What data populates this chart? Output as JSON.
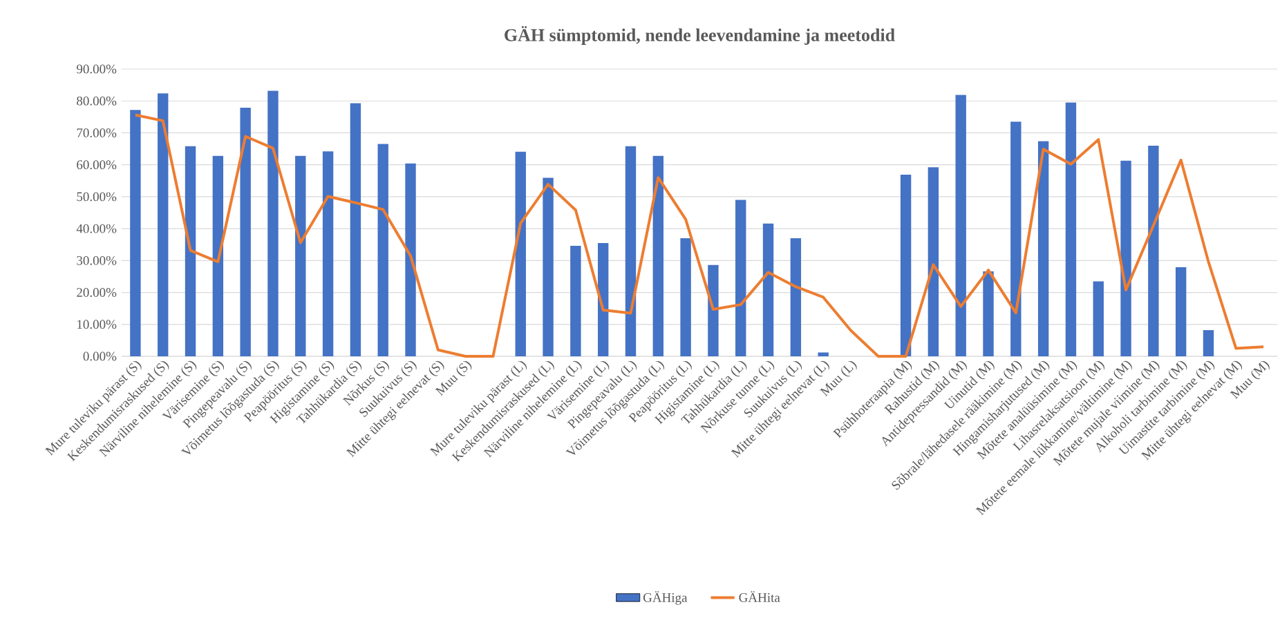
{
  "chart_data": {
    "type": "bar",
    "title": "GÄH sümptomid, nende leevendamine ja meetodid",
    "categories": [
      "Mure tuleviku pärast (S)",
      "Keskendumisraskused (S)",
      "Närviline nihelemine (S)",
      "Värisemine (S)",
      "Pingepeavalu (S)",
      "Võimetus lõõgastuda (S)",
      "Peapööritus (S)",
      "Higistamine (S)",
      "Tahhükardia (S)",
      "Nõrkus (S)",
      "Suukuivus (S)",
      "Mitte ühtegi eelnevat (S)",
      "Muu (S)",
      null,
      "Mure tuleviku pärast (L)",
      "Keskendumisraskused (L)",
      "Närviline nihelemine (L)",
      "Värisemine (L)",
      "Pingepeavalu (L)",
      "Võimetus lõõgastuda (L)",
      "Peapööritus (L)",
      "Higistamine (L)",
      "Tahhükardia (L)",
      "Nõrkuse tunne (L)",
      "Suukuivus (L)",
      "Mitte ühtegi eelnevat (L)",
      "Muu (L)",
      null,
      "Psühhoteraapia (M)",
      "Rahustid (M)",
      "Antidepressandid (M)",
      "Uinutid (M)",
      "Sõbrale/lähedasele rääkimine (M)",
      "Hingamisharjutused (M)",
      "Mõtete analüüsimine (M)",
      "Lihasrelaksatsioon (M)",
      "Mõtete eemale lükkamine/vältimine (M)",
      "Mõtete mujale viimine (M)",
      "Alkoholi tarbimine (M)",
      "Uimastite tarbimine (M)",
      "Mitte ühtegi eelnevat (M)",
      "Muu (M)"
    ],
    "series": [
      {
        "name": "GÄHiga",
        "color": "#4472c4",
        "values": [
          77.2,
          82.4,
          65.8,
          62.8,
          77.9,
          83.2,
          62.8,
          64.2,
          79.3,
          66.5,
          60.4,
          0,
          0,
          0,
          64.1,
          55.9,
          34.6,
          35.5,
          65.8,
          62.8,
          37.0,
          28.6,
          49.0,
          41.6,
          37.0,
          1.2,
          0,
          0,
          56.9,
          59.2,
          81.9,
          26.6,
          73.5,
          67.4,
          79.5,
          23.5,
          61.3,
          66.0,
          27.9,
          8.2,
          0,
          0
        ]
      },
      {
        "name": "GÄHita",
        "type": "line",
        "color": "#ed7d31",
        "values": [
          75.6,
          73.8,
          33.2,
          29.6,
          68.9,
          65.2,
          35.6,
          50.1,
          48.1,
          46.0,
          31.5,
          2.0,
          0,
          0,
          41.7,
          53.9,
          45.8,
          14.5,
          13.5,
          56.0,
          42.9,
          14.7,
          16.2,
          26.3,
          21.8,
          18.5,
          8.1,
          0,
          0,
          28.7,
          15.6,
          27.0,
          13.6,
          64.9,
          60.2,
          67.9,
          20.8,
          41.0,
          61.5,
          29.6,
          2.5,
          3.0
        ]
      }
    ],
    "ylim": [
      0,
      90
    ],
    "yticks": [
      {
        "value": 0,
        "label": "0.00%"
      },
      {
        "value": 10,
        "label": "10.00%"
      },
      {
        "value": 20,
        "label": "20.00%"
      },
      {
        "value": 30,
        "label": "30.00%"
      },
      {
        "value": 40,
        "label": "40.00%"
      },
      {
        "value": 50,
        "label": "50.00%"
      },
      {
        "value": 60,
        "label": "60.00%"
      },
      {
        "value": 70,
        "label": "70.00%"
      },
      {
        "value": 80,
        "label": "80.00%"
      },
      {
        "value": 90,
        "label": "90.00%"
      }
    ],
    "grid": "y",
    "legend": "bottom"
  }
}
